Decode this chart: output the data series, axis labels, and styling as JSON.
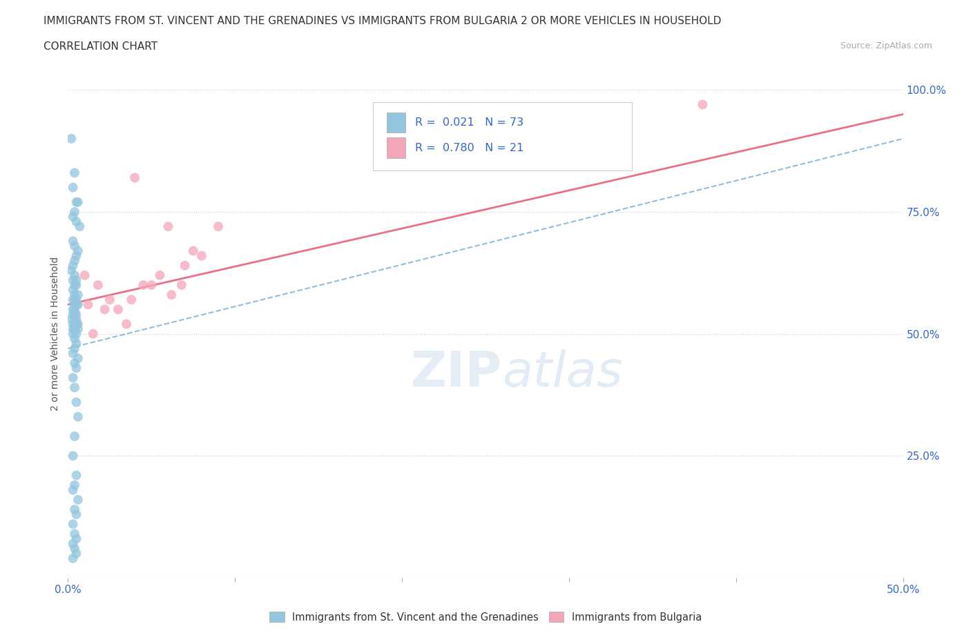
{
  "title_line1": "IMMIGRANTS FROM ST. VINCENT AND THE GRENADINES VS IMMIGRANTS FROM BULGARIA 2 OR MORE VEHICLES IN HOUSEHOLD",
  "title_line2": "CORRELATION CHART",
  "source_text": "Source: ZipAtlas.com",
  "ylabel": "2 or more Vehicles in Household",
  "watermark_zip": "ZIP",
  "watermark_atlas": "atlas",
  "legend_labels": [
    "Immigrants from St. Vincent and the Grenadines",
    "Immigrants from Bulgaria"
  ],
  "R_blue": 0.021,
  "N_blue": 73,
  "R_pink": 0.78,
  "N_pink": 21,
  "blue_color": "#92c5de",
  "pink_color": "#f4a6b8",
  "blue_line_color": "#4393c3",
  "pink_line_color": "#e8607a",
  "xlim": [
    0.0,
    0.5
  ],
  "ylim": [
    0.0,
    1.0
  ],
  "blue_x": [
    0.002,
    0.004,
    0.003,
    0.005,
    0.006,
    0.004,
    0.003,
    0.005,
    0.007,
    0.003,
    0.004,
    0.006,
    0.005,
    0.004,
    0.003,
    0.002,
    0.004,
    0.005,
    0.003,
    0.004,
    0.005,
    0.003,
    0.004,
    0.006,
    0.005,
    0.004,
    0.003,
    0.005,
    0.004,
    0.006,
    0.003,
    0.004,
    0.005,
    0.003,
    0.004,
    0.002,
    0.005,
    0.004,
    0.006,
    0.003,
    0.004,
    0.005,
    0.003,
    0.006,
    0.004,
    0.005,
    0.003,
    0.004,
    0.005,
    0.004,
    0.003,
    0.006,
    0.004,
    0.005,
    0.003,
    0.004,
    0.005,
    0.006,
    0.004,
    0.003,
    0.005,
    0.004,
    0.003,
    0.006,
    0.004,
    0.005,
    0.003,
    0.004,
    0.005,
    0.003,
    0.004,
    0.005,
    0.003
  ],
  "blue_y": [
    0.9,
    0.83,
    0.8,
    0.77,
    0.77,
    0.75,
    0.74,
    0.73,
    0.72,
    0.69,
    0.68,
    0.67,
    0.66,
    0.65,
    0.64,
    0.63,
    0.62,
    0.61,
    0.61,
    0.6,
    0.6,
    0.59,
    0.58,
    0.58,
    0.57,
    0.57,
    0.57,
    0.56,
    0.56,
    0.56,
    0.55,
    0.55,
    0.54,
    0.54,
    0.54,
    0.53,
    0.53,
    0.53,
    0.52,
    0.52,
    0.52,
    0.52,
    0.51,
    0.51,
    0.51,
    0.5,
    0.5,
    0.49,
    0.48,
    0.47,
    0.46,
    0.45,
    0.44,
    0.43,
    0.41,
    0.39,
    0.36,
    0.33,
    0.29,
    0.25,
    0.21,
    0.19,
    0.18,
    0.16,
    0.14,
    0.13,
    0.11,
    0.09,
    0.08,
    0.07,
    0.06,
    0.05,
    0.04
  ],
  "pink_x": [
    0.01,
    0.012,
    0.04,
    0.015,
    0.06,
    0.05,
    0.07,
    0.022,
    0.018,
    0.08,
    0.03,
    0.035,
    0.025,
    0.038,
    0.045,
    0.055,
    0.062,
    0.068,
    0.075,
    0.09,
    0.38
  ],
  "pink_y": [
    0.62,
    0.56,
    0.82,
    0.5,
    0.72,
    0.6,
    0.64,
    0.55,
    0.6,
    0.66,
    0.55,
    0.52,
    0.57,
    0.57,
    0.6,
    0.62,
    0.58,
    0.6,
    0.67,
    0.72,
    0.97
  ],
  "blue_trend_x": [
    0.0,
    0.5
  ],
  "blue_trend_y": [
    0.47,
    0.9
  ],
  "pink_trend_x": [
    0.0,
    0.5
  ],
  "pink_trend_y": [
    0.56,
    0.95
  ]
}
